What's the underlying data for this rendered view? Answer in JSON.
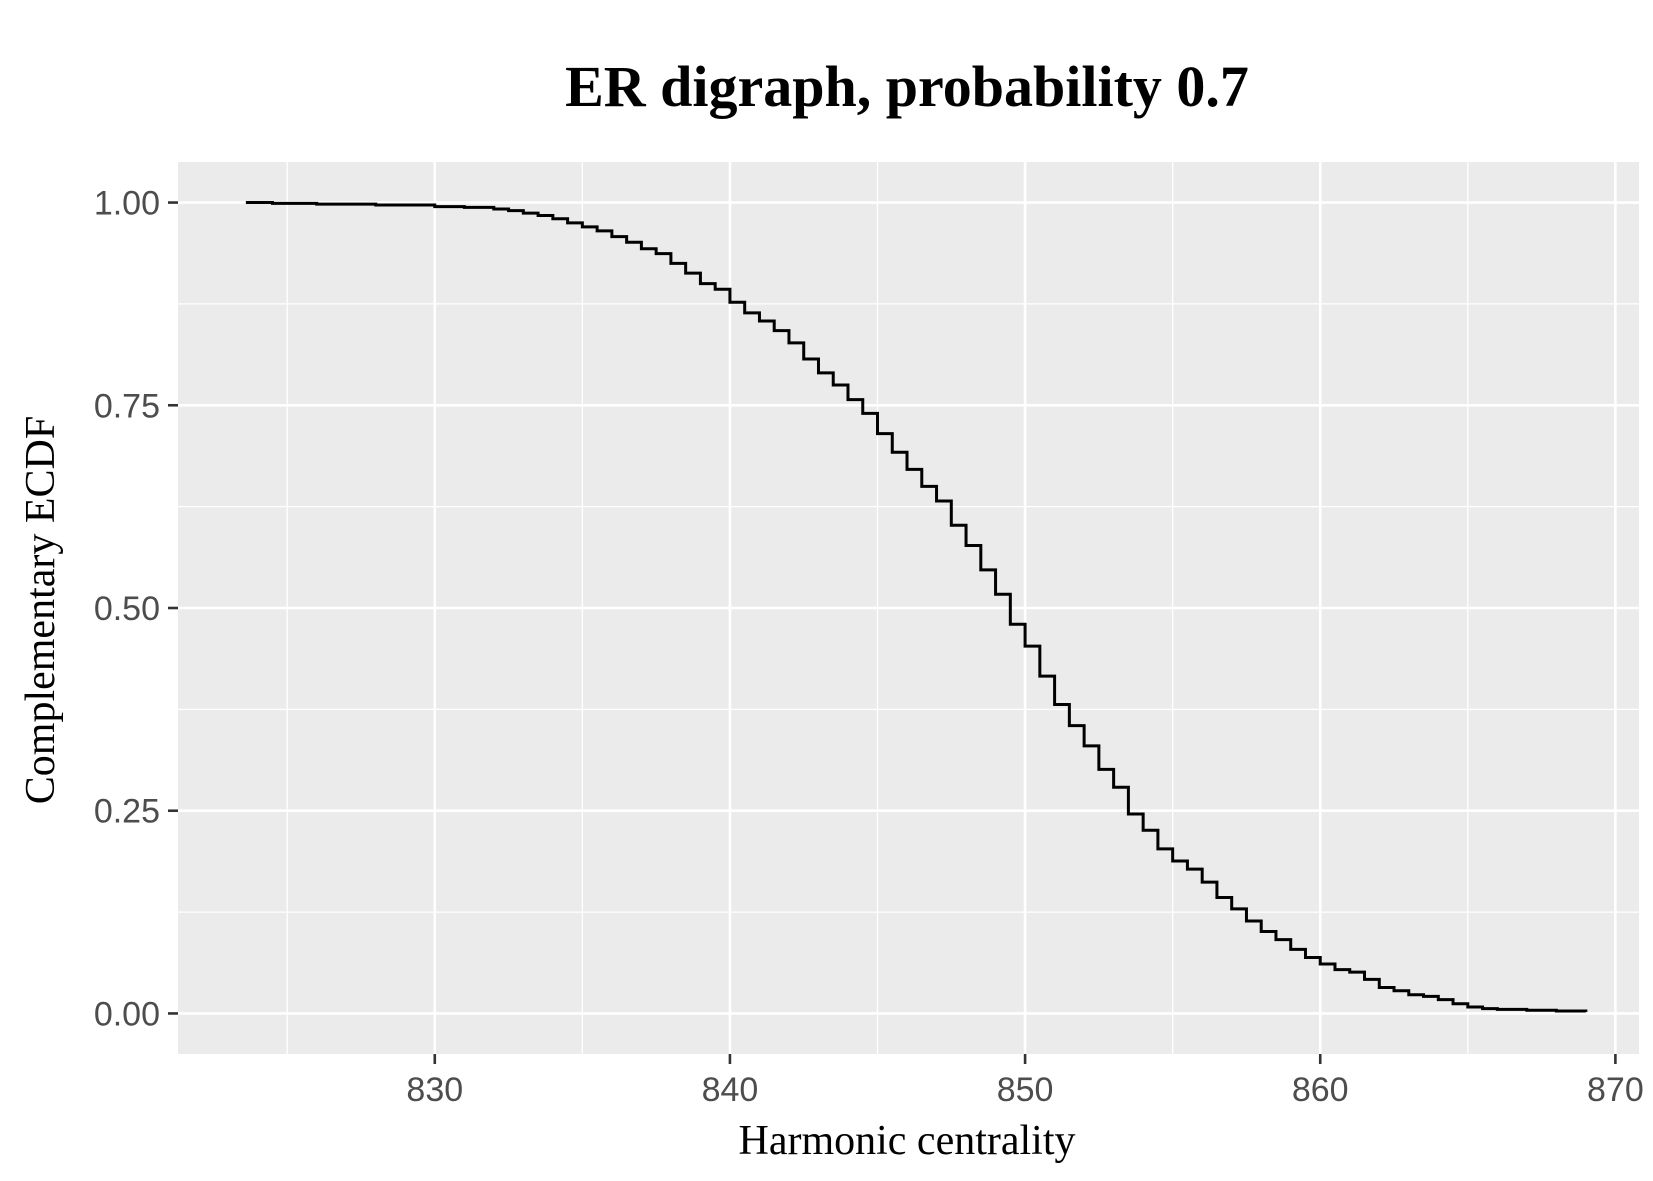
{
  "chart_data": {
    "type": "line",
    "subtype": "step",
    "title": "ER digraph, probability 0.7",
    "xlabel": "Harmonic centrality",
    "ylabel": "Complementary ECDF",
    "xlim": [
      821.3,
      870.8
    ],
    "ylim": [
      -0.05,
      1.05
    ],
    "x_ticks": [
      830,
      840,
      850,
      860,
      870
    ],
    "x_tick_labels": [
      "830",
      "840",
      "850",
      "860",
      "870"
    ],
    "y_ticks": [
      0.0,
      0.25,
      0.5,
      0.75,
      1.0
    ],
    "y_tick_labels": [
      "0.00",
      "0.25",
      "0.50",
      "0.75",
      "1.00"
    ],
    "grid": true,
    "legend": "none",
    "colors": {
      "panel": "#ebebeb",
      "grid": "#ffffff",
      "line": "#000000",
      "tick_text": "#4d4d4d"
    },
    "series": [
      {
        "x": [
          823.6,
          824.5,
          826.0,
          828.0,
          830.0,
          831.0,
          832.0,
          832.5,
          833.0,
          833.5,
          834.0,
          834.5,
          835.0,
          835.5,
          836.0,
          836.5,
          837.0,
          837.5,
          838.0,
          838.5,
          839.0,
          839.5,
          840.0,
          840.5,
          841.0,
          841.5,
          842.0,
          842.5,
          843.0,
          843.5,
          844.0,
          844.5,
          845.0,
          845.5,
          846.0,
          846.5,
          847.0,
          847.5,
          848.0,
          848.5,
          849.0,
          849.5,
          850.0,
          850.5,
          851.0,
          851.5,
          852.0,
          852.5,
          853.0,
          853.5,
          854.0,
          854.5,
          855.0,
          855.5,
          856.0,
          856.5,
          857.0,
          857.5,
          858.0,
          858.5,
          859.0,
          859.5,
          860.0,
          860.5,
          861.0,
          861.5,
          862.0,
          862.5,
          863.0,
          863.5,
          864.0,
          864.5,
          865.0,
          865.5,
          866.0,
          867.0,
          868.0,
          869.0
        ],
        "y": [
          1.0,
          0.999,
          0.998,
          0.997,
          0.995,
          0.994,
          0.992,
          0.99,
          0.987,
          0.984,
          0.98,
          0.975,
          0.97,
          0.965,
          0.958,
          0.951,
          0.943,
          0.937,
          0.925,
          0.913,
          0.9,
          0.893,
          0.877,
          0.864,
          0.854,
          0.842,
          0.827,
          0.807,
          0.79,
          0.775,
          0.757,
          0.74,
          0.715,
          0.692,
          0.671,
          0.65,
          0.632,
          0.602,
          0.577,
          0.547,
          0.517,
          0.48,
          0.453,
          0.416,
          0.381,
          0.355,
          0.33,
          0.301,
          0.279,
          0.246,
          0.226,
          0.203,
          0.188,
          0.178,
          0.162,
          0.143,
          0.129,
          0.114,
          0.101,
          0.091,
          0.079,
          0.069,
          0.061,
          0.054,
          0.051,
          0.042,
          0.032,
          0.028,
          0.023,
          0.021,
          0.017,
          0.012,
          0.008,
          0.006,
          0.005,
          0.004,
          0.003,
          0.002
        ]
      }
    ]
  }
}
